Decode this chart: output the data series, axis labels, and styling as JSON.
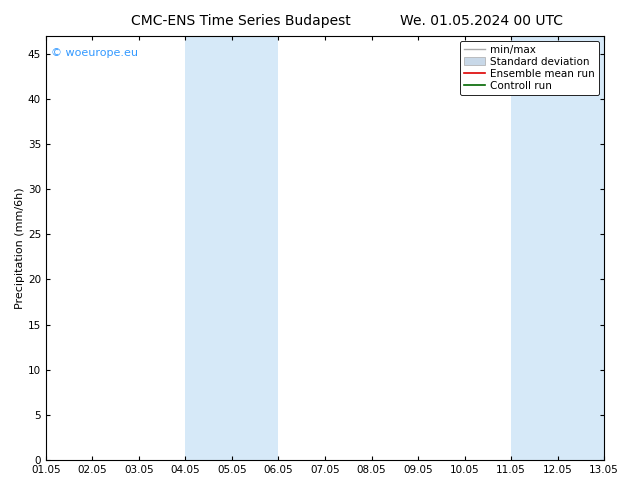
{
  "title_left": "CMC-ENS Time Series Budapest",
  "title_right": "We. 01.05.2024 00 UTC",
  "ylabel": "Precipitation (mm/6h)",
  "xlim": [
    0,
    12
  ],
  "ylim": [
    0,
    47
  ],
  "yticks": [
    0,
    5,
    10,
    15,
    20,
    25,
    30,
    35,
    40,
    45
  ],
  "xtick_labels": [
    "01.05",
    "02.05",
    "03.05",
    "04.05",
    "05.05",
    "06.05",
    "07.05",
    "08.05",
    "09.05",
    "10.05",
    "11.05",
    "12.05",
    "13.05"
  ],
  "shaded_bands": [
    {
      "xmin": 3,
      "xmax": 5,
      "color": "#d6e9f8"
    },
    {
      "xmin": 10,
      "xmax": 12,
      "color": "#d6e9f8"
    }
  ],
  "watermark": "© woeurope.eu",
  "watermark_color": "#3399ff",
  "bg_color": "#ffffff",
  "plot_bg_color": "#ffffff",
  "title_fontsize": 10,
  "ylabel_fontsize": 8,
  "tick_fontsize": 7.5,
  "legend_fontsize": 7.5,
  "min_max_color": "#aaaaaa",
  "std_color": "#bbccdd",
  "ensemble_color": "#dd0000",
  "control_color": "#006600"
}
